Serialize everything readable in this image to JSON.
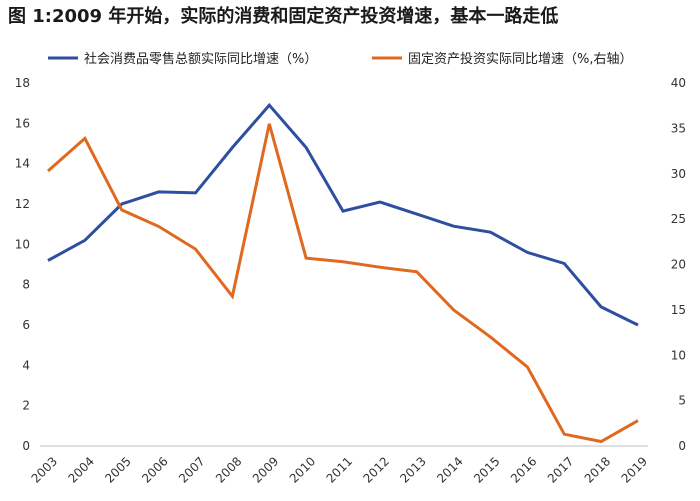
{
  "title": "图 1:2009 年开始，实际的消费和固定资产投资增速，基本一路走低",
  "chart_data": {
    "type": "line",
    "title": "图 1:2009 年开始，实际的消费和固定资产投资增速，基本一路走低",
    "x": [
      "2003",
      "2004",
      "2005",
      "2006",
      "2007",
      "2008",
      "2009",
      "2010",
      "2011",
      "2012",
      "2013",
      "2014",
      "2015",
      "2016",
      "2017",
      "2018",
      "2019"
    ],
    "series": [
      {
        "name": "社会消费品零售总额实际同比增速（%）",
        "axis": "left",
        "color": "#2e4ea0",
        "values": [
          9.2,
          10.2,
          12.0,
          12.6,
          12.55,
          14.8,
          16.9,
          14.8,
          11.65,
          12.1,
          11.5,
          10.9,
          10.6,
          9.6,
          9.05,
          6.9,
          6.0
        ]
      },
      {
        "name": "固定资产投资实际同比增速（%,右轴）",
        "axis": "right",
        "color": "#e0691f",
        "values": [
          30.3,
          33.9,
          26.0,
          24.2,
          21.7,
          16.5,
          35.5,
          20.7,
          20.3,
          19.7,
          19.2,
          15.0,
          12.0,
          8.7,
          1.3,
          0.5,
          2.8
        ]
      }
    ],
    "y_left": {
      "ticks": [
        "0",
        "2",
        "4",
        "6",
        "8",
        "10",
        "12",
        "14",
        "16",
        "18"
      ],
      "ylim": [
        0,
        18
      ]
    },
    "y_right": {
      "ticks": [
        "0",
        "5",
        "10",
        "15",
        "20",
        "25",
        "30",
        "35",
        "40"
      ],
      "ylim": [
        0,
        40
      ]
    },
    "legend": "top",
    "grid": false
  }
}
